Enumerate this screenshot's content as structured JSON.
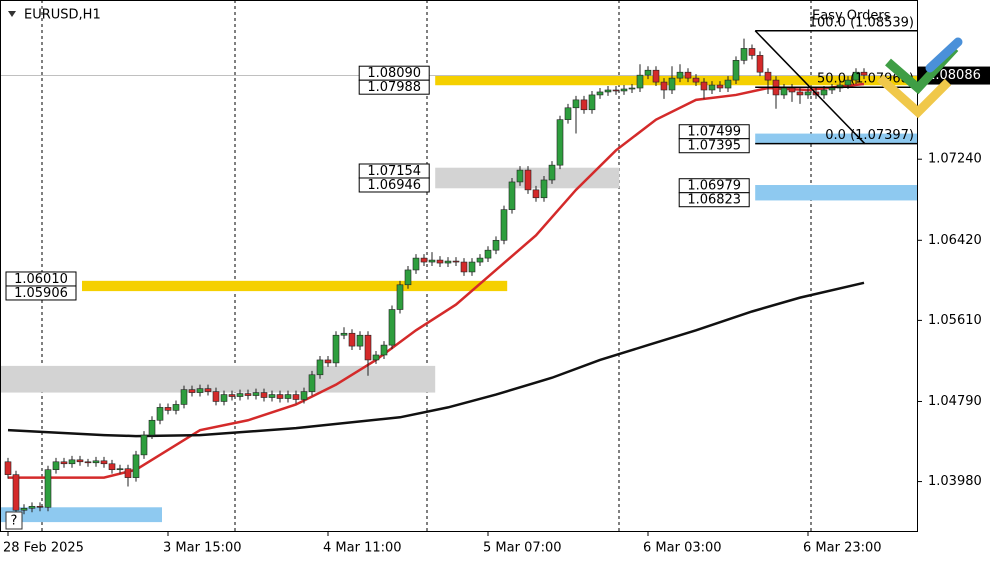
{
  "chart_data": {
    "type": "candlestick",
    "title": "EURUSD,H1",
    "panel_label": "Easy Orders",
    "help_icon": "?",
    "ylim": [
      1.0347,
      1.0885
    ],
    "yticks": [
      {
        "value": 1.0398,
        "label": "1.03980"
      },
      {
        "value": 1.0479,
        "label": "1.04790"
      },
      {
        "value": 1.0561,
        "label": "1.05610"
      },
      {
        "value": 1.0642,
        "label": "1.06420"
      },
      {
        "value": 1.0724,
        "label": "1.07240"
      }
    ],
    "xticks": [
      {
        "value": 0,
        "label": "28 Feb 2025"
      },
      {
        "value": 20,
        "label": "3 Mar 15:00"
      },
      {
        "value": 40,
        "label": "4 Mar 11:00"
      },
      {
        "value": 60,
        "label": "5 Mar 07:00"
      },
      {
        "value": 80,
        "label": "6 Mar 03:00"
      },
      {
        "value": 100,
        "label": "6 Mar 23:00"
      }
    ],
    "up_color": "#2e9e3e",
    "down_color": "#d42a2a",
    "candles": [
      [
        1.0418,
        1.0422,
        1.0401,
        1.0405
      ],
      [
        1.0405,
        1.0409,
        1.0365,
        1.0369
      ],
      [
        1.0369,
        1.0375,
        1.0365,
        1.0371
      ],
      [
        1.0371,
        1.0377,
        1.0367,
        1.0373
      ],
      [
        1.0373,
        1.0377,
        1.0368,
        1.0372
      ],
      [
        1.0372,
        1.0414,
        1.0368,
        1.041
      ],
      [
        1.041,
        1.0422,
        1.0406,
        1.0418
      ],
      [
        1.0418,
        1.0422,
        1.0412,
        1.0416
      ],
      [
        1.0416,
        1.0424,
        1.0412,
        1.042
      ],
      [
        1.042,
        1.0424,
        1.0414,
        1.0418
      ],
      [
        1.0418,
        1.0421,
        1.0413,
        1.0417
      ],
      [
        1.0417,
        1.0423,
        1.0413,
        1.0419
      ],
      [
        1.0419,
        1.0423,
        1.0412,
        1.0416
      ],
      [
        1.0416,
        1.042,
        1.0406,
        1.041
      ],
      [
        1.041,
        1.0415,
        1.0406,
        1.0411
      ],
      [
        1.0411,
        1.0415,
        1.0393,
        1.0402
      ],
      [
        1.0402,
        1.0429,
        1.0398,
        1.0425
      ],
      [
        1.0425,
        1.0449,
        1.0421,
        1.0445
      ],
      [
        1.0445,
        1.0464,
        1.0441,
        1.046
      ],
      [
        1.046,
        1.0477,
        1.0456,
        1.0473
      ],
      [
        1.0473,
        1.0477,
        1.0466,
        1.047
      ],
      [
        1.047,
        1.048,
        1.0466,
        1.0476
      ],
      [
        1.0476,
        1.0495,
        1.0472,
        1.0491
      ],
      [
        1.0491,
        1.0495,
        1.0484,
        1.0488
      ],
      [
        1.0488,
        1.0496,
        1.0484,
        1.0492
      ],
      [
        1.0492,
        1.0496,
        1.0485,
        1.0489
      ],
      [
        1.0489,
        1.0493,
        1.0475,
        1.0479
      ],
      [
        1.0479,
        1.049,
        1.0475,
        1.0486
      ],
      [
        1.0486,
        1.049,
        1.048,
        1.0484
      ],
      [
        1.0484,
        1.0491,
        1.048,
        1.0487
      ],
      [
        1.0487,
        1.0491,
        1.0481,
        1.0485
      ],
      [
        1.0485,
        1.0492,
        1.0481,
        1.0488
      ],
      [
        1.0488,
        1.0492,
        1.0479,
        1.0483
      ],
      [
        1.0483,
        1.049,
        1.0479,
        1.0486
      ],
      [
        1.0486,
        1.049,
        1.0478,
        1.0482
      ],
      [
        1.0482,
        1.049,
        1.0478,
        1.0486
      ],
      [
        1.0486,
        1.049,
        1.0477,
        1.0481
      ],
      [
        1.0481,
        1.0493,
        1.0477,
        1.0489
      ],
      [
        1.0489,
        1.051,
        1.0485,
        1.0506
      ],
      [
        1.0506,
        1.0525,
        1.0502,
        1.0521
      ],
      [
        1.0521,
        1.0525,
        1.0514,
        1.0518
      ],
      [
        1.0518,
        1.055,
        1.0514,
        1.0546
      ],
      [
        1.0546,
        1.0554,
        1.0542,
        1.0548
      ],
      [
        1.0548,
        1.0552,
        1.0531,
        1.0535
      ],
      [
        1.0535,
        1.055,
        1.0531,
        1.0546
      ],
      [
        1.0546,
        1.055,
        1.0505,
        1.0521
      ],
      [
        1.0521,
        1.053,
        1.0517,
        1.0526
      ],
      [
        1.0526,
        1.054,
        1.0522,
        1.0536
      ],
      [
        1.0536,
        1.0576,
        1.0532,
        1.0572
      ],
      [
        1.0572,
        1.0601,
        1.0568,
        1.0597
      ],
      [
        1.0597,
        1.0616,
        1.0593,
        1.0612
      ],
      [
        1.0612,
        1.0628,
        1.0608,
        1.0624
      ],
      [
        1.0624,
        1.0628,
        1.0616,
        1.062
      ],
      [
        1.062,
        1.063,
        1.0616,
        1.0622
      ],
      [
        1.0622,
        1.0626,
        1.0615,
        1.0619
      ],
      [
        1.0619,
        1.0625,
        1.0615,
        1.0621
      ],
      [
        1.0621,
        1.0625,
        1.0616,
        1.062
      ],
      [
        1.062,
        1.0624,
        1.0606,
        1.061
      ],
      [
        1.061,
        1.0624,
        1.0606,
        1.062
      ],
      [
        1.062,
        1.0628,
        1.0616,
        1.0624
      ],
      [
        1.0624,
        1.0636,
        1.062,
        1.0632
      ],
      [
        1.0632,
        1.0646,
        1.0628,
        1.0642
      ],
      [
        1.0642,
        1.0677,
        1.0638,
        1.0673
      ],
      [
        1.0673,
        1.0705,
        1.0669,
        1.0701
      ],
      [
        1.0701,
        1.0717,
        1.0697,
        1.0713
      ],
      [
        1.0713,
        1.0717,
        1.0689,
        1.0693
      ],
      [
        1.0693,
        1.0697,
        1.0681,
        1.0685
      ],
      [
        1.0685,
        1.0707,
        1.0681,
        1.0703
      ],
      [
        1.0703,
        1.0722,
        1.0699,
        1.0718
      ],
      [
        1.0718,
        1.0768,
        1.0714,
        1.0764
      ],
      [
        1.0764,
        1.078,
        1.076,
        1.0776
      ],
      [
        1.0776,
        1.0788,
        1.075,
        1.0784
      ],
      [
        1.0784,
        1.0788,
        1.077,
        1.0774
      ],
      [
        1.0774,
        1.0793,
        1.077,
        1.0789
      ],
      [
        1.0789,
        1.0796,
        1.0785,
        1.0792
      ],
      [
        1.0792,
        1.0798,
        1.0788,
        1.0794
      ],
      [
        1.0794,
        1.0798,
        1.0789,
        1.0793
      ],
      [
        1.0793,
        1.0799,
        1.0789,
        1.0795
      ],
      [
        1.0795,
        1.08,
        1.0791,
        1.0796
      ],
      [
        1.0796,
        1.082,
        1.0792,
        1.0809
      ],
      [
        1.0809,
        1.0818,
        1.0805,
        1.0814
      ],
      [
        1.0814,
        1.0818,
        1.0798,
        1.0802
      ],
      [
        1.0802,
        1.0806,
        1.0785,
        1.0794
      ],
      [
        1.0794,
        1.0818,
        1.079,
        1.0806
      ],
      [
        1.0806,
        1.082,
        1.0802,
        1.0812
      ],
      [
        1.0812,
        1.0816,
        1.0802,
        1.0806
      ],
      [
        1.0806,
        1.081,
        1.0798,
        1.0802
      ],
      [
        1.0802,
        1.0806,
        1.0785,
        1.0794
      ],
      [
        1.0794,
        1.0803,
        1.079,
        1.0799
      ],
      [
        1.0799,
        1.0803,
        1.0792,
        1.0796
      ],
      [
        1.0796,
        1.0808,
        1.0792,
        1.0804
      ],
      [
        1.0804,
        1.0828,
        1.08,
        1.0824
      ],
      [
        1.0824,
        1.0846,
        1.082,
        1.0836
      ],
      [
        1.0836,
        1.084,
        1.0825,
        1.0829
      ],
      [
        1.0829,
        1.0833,
        1.0808,
        1.0812
      ],
      [
        1.0812,
        1.0816,
        1.079,
        1.0804
      ],
      [
        1.0804,
        1.0808,
        1.0775,
        1.0789
      ],
      [
        1.0789,
        1.08,
        1.0785,
        1.0796
      ],
      [
        1.0796,
        1.08,
        1.0782,
        1.0792
      ],
      [
        1.0792,
        1.0796,
        1.078,
        1.0789
      ],
      [
        1.0789,
        1.0796,
        1.0785,
        1.0792
      ],
      [
        1.0792,
        1.0796,
        1.0785,
        1.0789
      ],
      [
        1.0789,
        1.0798,
        1.0785,
        1.0794
      ],
      [
        1.0794,
        1.08,
        1.079,
        1.0796
      ],
      [
        1.0796,
        1.0803,
        1.0792,
        1.0799
      ],
      [
        1.0799,
        1.0808,
        1.0795,
        1.0804
      ],
      [
        1.0804,
        1.0816,
        1.08,
        1.0812
      ],
      [
        1.0812,
        1.0816,
        1.0805,
        1.0809
      ]
    ],
    "lines": [
      {
        "color": "#d42a2a",
        "x": [
          0,
          12,
          16,
          24,
          30,
          36,
          41,
          46,
          51,
          56,
          61,
          66,
          71,
          76,
          81,
          86,
          91,
          95,
          100,
          107
        ],
        "values": [
          1.0402,
          1.0402,
          1.041,
          1.045,
          1.046,
          1.0476,
          1.0496,
          1.0521,
          1.0551,
          1.0577,
          1.0612,
          1.0647,
          1.0693,
          1.0733,
          1.0764,
          1.0784,
          1.0789,
          1.0796,
          1.0794,
          1.08
        ]
      },
      {
        "color": "#111111",
        "x": [
          0,
          12,
          16,
          24,
          36,
          49,
          55,
          61,
          68,
          74,
          80,
          86,
          93,
          99,
          107
        ],
        "values": [
          1.045,
          1.0445,
          1.0444,
          1.0445,
          1.0452,
          1.0463,
          1.0473,
          1.0486,
          1.0503,
          1.0521,
          1.0536,
          1.0551,
          1.057,
          1.0584,
          1.0599
        ]
      }
    ],
    "zones": [
      {
        "color": "#f5d000",
        "start": 53.4,
        "end": 114,
        "high": {
          "value": 1.0809,
          "label": "1.08090"
        },
        "low": {
          "value": 1.07988,
          "label": "1.07988"
        }
      },
      {
        "color": "#d3d3d3",
        "start": 53.4,
        "end": 76.4,
        "high": {
          "value": 1.07154,
          "label": "1.07154"
        },
        "low": {
          "value": 1.06946,
          "label": "1.06946"
        }
      },
      {
        "color": "#8ec9f0",
        "start": 93.4,
        "end": 114,
        "high": {
          "value": 1.07499,
          "label": "1.07499"
        },
        "low": {
          "value": 1.07395,
          "label": "1.07395"
        }
      },
      {
        "color": "#8ec9f0",
        "start": 93.4,
        "end": 114,
        "high": {
          "value": 1.06979,
          "label": "1.06979"
        },
        "low": {
          "value": 1.06823,
          "label": "1.06823"
        }
      },
      {
        "color": "#f5d000",
        "start": 9.25,
        "end": 62.4,
        "high": {
          "value": 1.0601,
          "label": "1.06010"
        },
        "low": {
          "value": 1.05906,
          "label": "1.05906"
        }
      },
      {
        "color": "#d3d3d3",
        "start": -1,
        "end": 53.4,
        "high": 1.0515,
        "low": 1.0488
      },
      {
        "color": "#8ec9f0",
        "start": -1,
        "end": 19.25,
        "high": 1.0372,
        "low": 1.0357
      }
    ],
    "fib": {
      "start": 93.4,
      "end": 107.1,
      "levels": [
        {
          "value": 1.08539,
          "label": "100.0 (1.08539)"
        },
        {
          "value": 1.07968,
          "label": "50.0 (1.07968)"
        },
        {
          "value": 1.07397,
          "label": "0.0 (1.07397)"
        }
      ]
    },
    "last_price": {
      "value": 1.08086,
      "label": "1.08086"
    }
  }
}
